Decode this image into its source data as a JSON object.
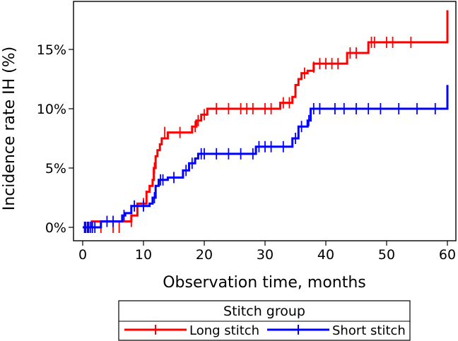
{
  "chart_data": {
    "type": "line",
    "subtype": "step",
    "xlabel": "Observation time, months",
    "ylabel": "Incidence rate IH (%)",
    "xlim": [
      0,
      60
    ],
    "ylim": [
      0,
      18.5
    ],
    "xticks": [
      0,
      10,
      20,
      30,
      40,
      50,
      60
    ],
    "yticks": [
      0,
      5,
      10,
      15
    ],
    "ytick_labels": [
      "0%",
      "5%",
      "10%",
      "15%"
    ],
    "grid": false,
    "legend": {
      "title": "Stitch group",
      "position": "bottom"
    },
    "series": [
      {
        "name": "Long stitch",
        "color": "#ff0000",
        "steps": [
          [
            0,
            0
          ],
          [
            1.5,
            0.5
          ],
          [
            8,
            1
          ],
          [
            9,
            2
          ],
          [
            10.5,
            3
          ],
          [
            11,
            3.5
          ],
          [
            11.5,
            4
          ],
          [
            11.7,
            5
          ],
          [
            12,
            6
          ],
          [
            12.3,
            6.5
          ],
          [
            12.7,
            7
          ],
          [
            13,
            7.5
          ],
          [
            14,
            8
          ],
          [
            18,
            8.5
          ],
          [
            18.7,
            9
          ],
          [
            19.5,
            9.5
          ],
          [
            20.5,
            10
          ],
          [
            32.5,
            10.5
          ],
          [
            34.5,
            11
          ],
          [
            35,
            12
          ],
          [
            35.5,
            12.5
          ],
          [
            36,
            13
          ],
          [
            37,
            13.2
          ],
          [
            38,
            13.8
          ],
          [
            43.5,
            14.7
          ],
          [
            47,
            15.6
          ],
          [
            60,
            18.3
          ]
        ],
        "censored": [
          [
            0.5,
            0
          ],
          [
            1,
            0
          ],
          [
            3,
            0
          ],
          [
            5,
            0
          ],
          [
            6,
            0
          ],
          [
            8,
            0.5
          ],
          [
            10,
            2
          ],
          [
            11.8,
            5
          ],
          [
            13.5,
            8
          ],
          [
            16,
            8
          ],
          [
            18.5,
            8.5
          ],
          [
            19,
            9
          ],
          [
            20,
            9.5
          ],
          [
            22,
            10
          ],
          [
            24,
            10
          ],
          [
            26,
            10
          ],
          [
            27,
            10
          ],
          [
            28,
            10
          ],
          [
            30,
            10
          ],
          [
            31,
            10
          ],
          [
            33,
            10.5
          ],
          [
            34,
            10.5
          ],
          [
            36.5,
            13
          ],
          [
            38,
            13.5
          ],
          [
            39,
            13.8
          ],
          [
            40,
            13.8
          ],
          [
            41,
            13.8
          ],
          [
            42,
            13.8
          ],
          [
            44,
            14.7
          ],
          [
            45,
            14.7
          ],
          [
            47.5,
            15.6
          ],
          [
            48,
            15.6
          ],
          [
            50,
            15.6
          ],
          [
            51,
            15.6
          ],
          [
            54,
            15.6
          ]
        ]
      },
      {
        "name": "Short stitch",
        "color": "#0000ff",
        "steps": [
          [
            0,
            0
          ],
          [
            3,
            0.5
          ],
          [
            6.5,
            1
          ],
          [
            7,
            1.2
          ],
          [
            8,
            1.8
          ],
          [
            11,
            2
          ],
          [
            11.5,
            2.5
          ],
          [
            12,
            3.5
          ],
          [
            12.5,
            4
          ],
          [
            14,
            4.2
          ],
          [
            16.5,
            4.8
          ],
          [
            17.5,
            5.4
          ],
          [
            18.5,
            5.8
          ],
          [
            19,
            6.2
          ],
          [
            28.5,
            6.8
          ],
          [
            34.5,
            7.5
          ],
          [
            35.5,
            8.5
          ],
          [
            37,
            9
          ],
          [
            37.5,
            10
          ],
          [
            60,
            12
          ]
        ],
        "censored": [
          [
            0.3,
            0
          ],
          [
            0.5,
            0
          ],
          [
            0.8,
            0
          ],
          [
            1,
            0
          ],
          [
            1.3,
            0
          ],
          [
            1.6,
            0
          ],
          [
            2,
            0
          ],
          [
            4,
            0.5
          ],
          [
            5,
            0.5
          ],
          [
            6.8,
            1
          ],
          [
            8.5,
            1.8
          ],
          [
            10,
            1.8
          ],
          [
            11.8,
            2.5
          ],
          [
            12.8,
            4
          ],
          [
            13.2,
            4
          ],
          [
            15,
            4.2
          ],
          [
            17,
            4.8
          ],
          [
            18,
            5.4
          ],
          [
            19.5,
            6.2
          ],
          [
            20,
            6.2
          ],
          [
            22,
            6.2
          ],
          [
            24,
            6.2
          ],
          [
            26,
            6.2
          ],
          [
            28,
            6.2
          ],
          [
            29,
            6.8
          ],
          [
            30,
            6.8
          ],
          [
            31,
            6.8
          ],
          [
            33,
            6.8
          ],
          [
            35,
            7.5
          ],
          [
            36,
            8.5
          ],
          [
            37.2,
            9
          ],
          [
            38,
            10
          ],
          [
            39,
            10
          ],
          [
            41.5,
            10
          ],
          [
            43,
            10
          ],
          [
            45,
            10
          ],
          [
            47,
            10
          ],
          [
            49,
            10
          ],
          [
            52,
            10
          ],
          [
            55,
            10
          ],
          [
            58,
            10
          ]
        ]
      }
    ]
  }
}
